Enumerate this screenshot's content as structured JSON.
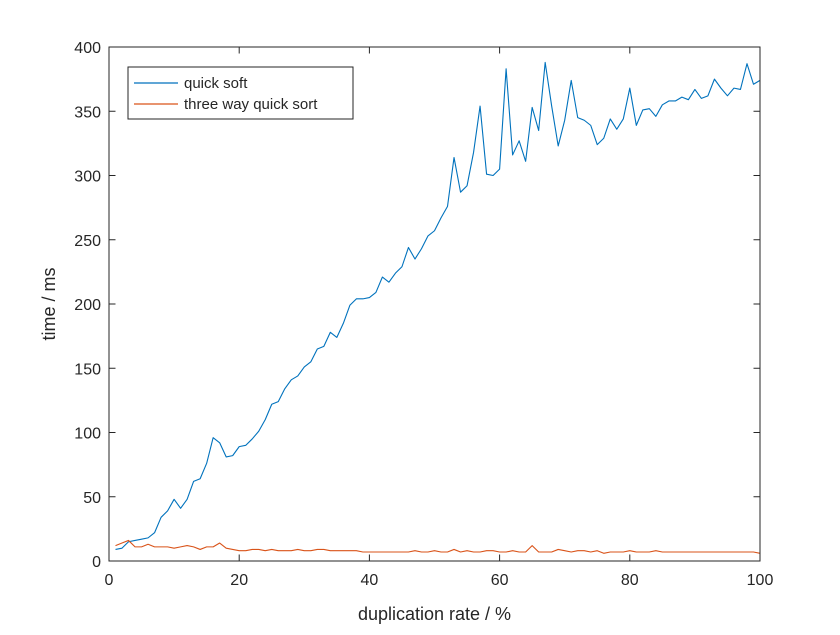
{
  "chart_data": {
    "type": "line",
    "title": "",
    "xlabel": "duplication rate / %",
    "ylabel": "time / ms",
    "xlim": [
      0,
      100
    ],
    "ylim": [
      0,
      400
    ],
    "xticks": [
      0,
      20,
      40,
      60,
      80,
      100
    ],
    "yticks": [
      0,
      50,
      100,
      150,
      200,
      250,
      300,
      350,
      400
    ],
    "x_tick_labels": [
      "0",
      "20",
      "40",
      "60",
      "80",
      "100"
    ],
    "y_tick_labels": [
      "0",
      "50",
      "100",
      "150",
      "200",
      "250",
      "300",
      "350",
      "400"
    ],
    "grid": false,
    "legend_position": "top-left",
    "x": [
      1,
      2,
      3,
      4,
      5,
      6,
      7,
      8,
      9,
      10,
      11,
      12,
      13,
      14,
      15,
      16,
      17,
      18,
      19,
      20,
      21,
      22,
      23,
      24,
      25,
      26,
      27,
      28,
      29,
      30,
      31,
      32,
      33,
      34,
      35,
      36,
      37,
      38,
      39,
      40,
      41,
      42,
      43,
      44,
      45,
      46,
      47,
      48,
      49,
      50,
      51,
      52,
      53,
      54,
      55,
      56,
      57,
      58,
      59,
      60,
      61,
      62,
      63,
      64,
      65,
      66,
      67,
      68,
      69,
      70,
      71,
      72,
      73,
      74,
      75,
      76,
      77,
      78,
      79,
      80,
      81,
      82,
      83,
      84,
      85,
      86,
      87,
      88,
      89,
      90,
      91,
      92,
      93,
      94,
      95,
      96,
      97,
      98,
      99,
      100
    ],
    "series": [
      {
        "name": "quick soft",
        "color": "#0072BD",
        "values": [
          9,
          10,
          15,
          16,
          17,
          18,
          22,
          34,
          39,
          48,
          41,
          48,
          62,
          64,
          76,
          96,
          92,
          81,
          82,
          89,
          90,
          95,
          101,
          110,
          122,
          124,
          134,
          141,
          144,
          151,
          155,
          165,
          167,
          178,
          174,
          185,
          199,
          204,
          204,
          205,
          209,
          221,
          217,
          224,
          229,
          244,
          235,
          243,
          253,
          257,
          267,
          276,
          314,
          287,
          292,
          318,
          354,
          301,
          300,
          305,
          383,
          316,
          327,
          311,
          353,
          335,
          388,
          354,
          323,
          343,
          374,
          345,
          343,
          339,
          324,
          329,
          344,
          336,
          344,
          368,
          339,
          351,
          352,
          346,
          355,
          358,
          358,
          361,
          359,
          367,
          360,
          362,
          375,
          368,
          362,
          368,
          367,
          387,
          371,
          374
        ]
      },
      {
        "name": "three way quick sort",
        "color": "#D95319",
        "values": [
          12,
          14,
          16,
          11,
          11,
          13,
          11,
          11,
          11,
          10,
          11,
          12,
          11,
          9,
          11,
          11,
          14,
          10,
          9,
          8,
          8,
          9,
          9,
          8,
          9,
          8,
          8,
          8,
          9,
          8,
          8,
          9,
          9,
          8,
          8,
          8,
          8,
          8,
          7,
          7,
          7,
          7,
          7,
          7,
          7,
          7,
          8,
          7,
          7,
          8,
          7,
          7,
          9,
          7,
          8,
          7,
          7,
          8,
          8,
          7,
          7,
          8,
          7,
          7,
          12,
          7,
          7,
          7,
          9,
          8,
          7,
          8,
          8,
          7,
          8,
          6,
          7,
          7,
          7,
          8,
          7,
          7,
          7,
          8,
          7,
          7,
          7,
          7,
          7,
          7,
          7,
          7,
          7,
          7,
          7,
          7,
          7,
          7,
          7,
          6
        ]
      }
    ]
  }
}
